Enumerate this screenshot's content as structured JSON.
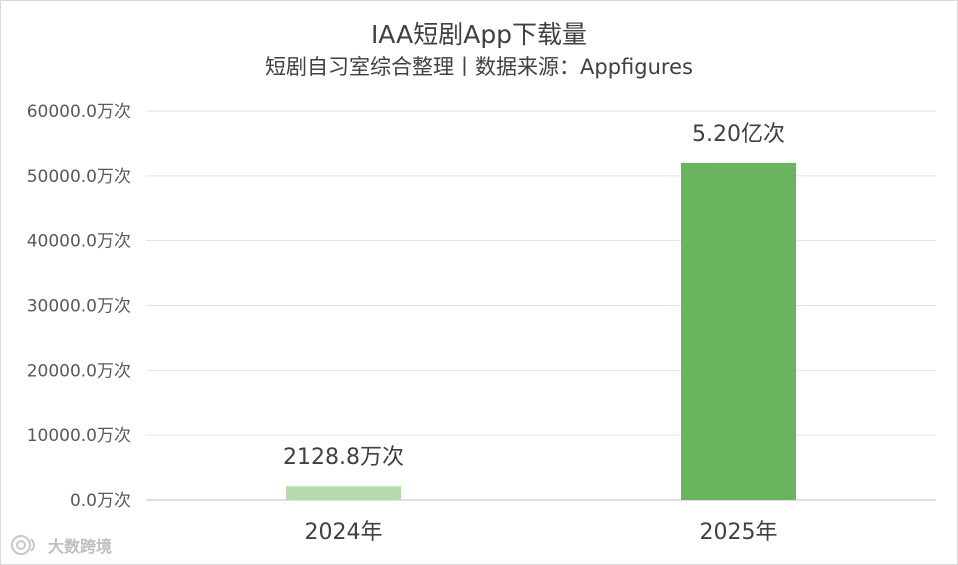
{
  "chart_data": {
    "type": "bar",
    "title": "IAA短剧App下载量",
    "subtitle": "短剧自习室综合整理丨数据来源：Appfigures",
    "categories": [
      "2024年",
      "2025年"
    ],
    "values": [
      2128.8,
      52000
    ],
    "data_labels": [
      "2128.8万次",
      "5.20亿次"
    ],
    "bar_colors": [
      "#b6dcae",
      "#6ab35f"
    ],
    "ylim": [
      0,
      60000
    ],
    "y_ticks": [
      0,
      10000,
      20000,
      30000,
      40000,
      50000,
      60000
    ],
    "y_tick_labels": [
      "0.0万次",
      "10000.0万次",
      "20000.0万次",
      "30000.0万次",
      "40000.0万次",
      "50000.0万次",
      "60000.0万次"
    ],
    "grid": true,
    "legend": "none"
  },
  "watermark": {
    "text": "大数跨境",
    "icon": "swirl-logo-icon"
  }
}
